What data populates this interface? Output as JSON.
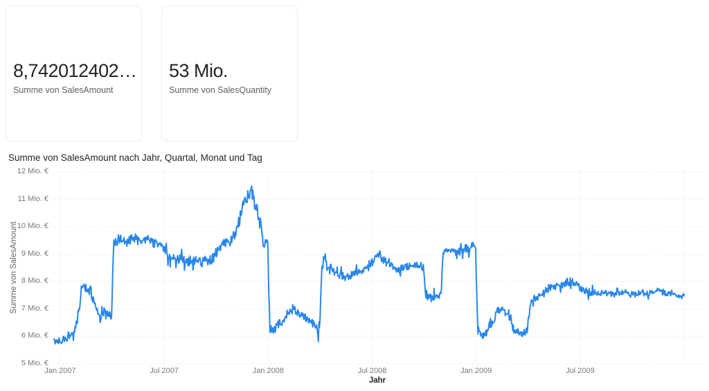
{
  "cards": [
    {
      "value": "8,742012402…",
      "label": "Summe von SalesAmount"
    },
    {
      "value": "53 Mio.",
      "label": "Summe von SalesQuantity"
    }
  ],
  "chart": {
    "title": "Summe von SalesAmount nach Jahr, Quartal, Monat und Tag",
    "y_axis_title": "Summe von SalesAmount",
    "x_axis_title": "Jahr"
  },
  "colors": {
    "line": "#2887EB",
    "grid": "#e0e0e0",
    "axis_text": "#777777",
    "title_text": "#252423",
    "card_value": "#252423",
    "card_label": "#605e5c",
    "card_border": "#ececec"
  },
  "chart_data": {
    "type": "line",
    "title": "Summe von SalesAmount nach Jahr, Quartal, Monat und Tag",
    "xlabel": "Jahr",
    "ylabel": "Summe von SalesAmount",
    "unit": "Mio. €",
    "granularity": "Tag",
    "series_name": "Summe von SalesAmount",
    "ylim": [
      5,
      12
    ],
    "y_ticks": [
      {
        "v": 12,
        "label": "12 Mio. €"
      },
      {
        "v": 11,
        "label": "11 Mio. €"
      },
      {
        "v": 10,
        "label": "10 Mio. €"
      },
      {
        "v": 9,
        "label": "9 Mio. €"
      },
      {
        "v": 8,
        "label": "8 Mio. €"
      },
      {
        "v": 7,
        "label": "7 Mio. €"
      },
      {
        "v": 6,
        "label": "6 Mio. €"
      },
      {
        "v": 5,
        "label": "5 Mio. €"
      }
    ],
    "x_ticks": [
      {
        "month": 0,
        "label": "Jan 2007"
      },
      {
        "month": 6,
        "label": "Jul 2007"
      },
      {
        "month": 12,
        "label": "Jan 2008"
      },
      {
        "month": 18,
        "label": "Jul 2008"
      },
      {
        "month": 24,
        "label": "Jan 2009"
      },
      {
        "month": 30,
        "label": "Jul 2009"
      },
      {
        "month": 36,
        "label": ""
      }
    ],
    "grid": "dotted",
    "legend": "none",
    "start_month_offset": -0.36,
    "days_per_month": 30.42,
    "noise_seed": 20070101,
    "spike_probability": 0.08,
    "spike_scale": 2.2,
    "value_clamp": [
      5.3,
      11.7
    ],
    "waypoints_month_value": [
      [
        0.0,
        5.85
      ],
      [
        0.4,
        5.95
      ],
      [
        0.8,
        6.15
      ],
      [
        1.0,
        6.6
      ],
      [
        1.15,
        7.3
      ],
      [
        1.3,
        8.0
      ],
      [
        1.5,
        7.65
      ],
      [
        1.75,
        7.7
      ],
      [
        2.0,
        7.05
      ],
      [
        2.3,
        6.7
      ],
      [
        2.6,
        6.9
      ],
      [
        2.95,
        6.65
      ],
      [
        3.08,
        9.35
      ],
      [
        3.4,
        9.55
      ],
      [
        3.8,
        9.45
      ],
      [
        4.2,
        9.6
      ],
      [
        4.6,
        9.5
      ],
      [
        5.0,
        9.55
      ],
      [
        5.4,
        9.45
      ],
      [
        5.8,
        9.35
      ],
      [
        6.15,
        9.0
      ],
      [
        6.5,
        8.85
      ],
      [
        7.0,
        8.8
      ],
      [
        7.5,
        8.7
      ],
      [
        8.0,
        8.75
      ],
      [
        8.5,
        8.65
      ],
      [
        8.9,
        8.9
      ],
      [
        9.2,
        9.3
      ],
      [
        9.6,
        9.45
      ],
      [
        10.0,
        9.6
      ],
      [
        10.3,
        10.1
      ],
      [
        10.6,
        10.9
      ],
      [
        10.85,
        11.15
      ],
      [
        11.05,
        11.4
      ],
      [
        11.2,
        10.85
      ],
      [
        11.4,
        10.55
      ],
      [
        11.55,
        10.1
      ],
      [
        11.7,
        9.45
      ],
      [
        11.97,
        9.4
      ],
      [
        12.1,
        6.25
      ],
      [
        12.4,
        6.3
      ],
      [
        12.8,
        6.55
      ],
      [
        13.1,
        6.85
      ],
      [
        13.4,
        7.0
      ],
      [
        13.7,
        6.9
      ],
      [
        14.0,
        6.75
      ],
      [
        14.4,
        6.55
      ],
      [
        14.75,
        6.3
      ],
      [
        14.97,
        6.15
      ],
      [
        15.08,
        8.55
      ],
      [
        15.25,
        8.85
      ],
      [
        15.5,
        8.5
      ],
      [
        15.8,
        8.35
      ],
      [
        16.2,
        8.25
      ],
      [
        16.6,
        8.2
      ],
      [
        17.0,
        8.3
      ],
      [
        17.4,
        8.35
      ],
      [
        17.8,
        8.6
      ],
      [
        18.2,
        8.9
      ],
      [
        18.45,
        9.0
      ],
      [
        18.8,
        8.7
      ],
      [
        19.2,
        8.5
      ],
      [
        19.6,
        8.45
      ],
      [
        20.0,
        8.55
      ],
      [
        20.4,
        8.6
      ],
      [
        20.97,
        8.55
      ],
      [
        21.1,
        7.5
      ],
      [
        21.4,
        7.4
      ],
      [
        21.7,
        7.5
      ],
      [
        21.97,
        7.55
      ],
      [
        22.1,
        9.1
      ],
      [
        22.5,
        9.15
      ],
      [
        22.9,
        9.1
      ],
      [
        23.3,
        9.2
      ],
      [
        23.6,
        9.15
      ],
      [
        23.85,
        9.45
      ],
      [
        23.97,
        9.2
      ],
      [
        24.1,
        6.15
      ],
      [
        24.4,
        6.05
      ],
      [
        24.7,
        6.25
      ],
      [
        24.97,
        6.5
      ],
      [
        25.15,
        6.9
      ],
      [
        25.5,
        6.95
      ],
      [
        25.85,
        6.8
      ],
      [
        26.15,
        6.25
      ],
      [
        26.5,
        6.1
      ],
      [
        26.95,
        6.2
      ],
      [
        27.15,
        7.3
      ],
      [
        27.5,
        7.45
      ],
      [
        27.9,
        7.6
      ],
      [
        28.3,
        7.8
      ],
      [
        28.7,
        7.85
      ],
      [
        29.0,
        7.9
      ],
      [
        29.3,
        8.0
      ],
      [
        29.6,
        7.95
      ],
      [
        29.9,
        7.85
      ],
      [
        30.2,
        7.7
      ],
      [
        30.6,
        7.6
      ],
      [
        31.0,
        7.55
      ],
      [
        31.5,
        7.6
      ],
      [
        32.0,
        7.55
      ],
      [
        32.5,
        7.6
      ],
      [
        33.0,
        7.55
      ],
      [
        33.5,
        7.6
      ],
      [
        34.0,
        7.55
      ],
      [
        34.4,
        7.65
      ],
      [
        34.7,
        7.7
      ],
      [
        35.0,
        7.55
      ],
      [
        35.4,
        7.6
      ],
      [
        35.8,
        7.45
      ],
      [
        36.0,
        7.5
      ]
    ],
    "noise_amp_per_month": [
      0.12,
      0.22,
      0.18,
      0.15,
      0.13,
      0.15,
      0.16,
      0.18,
      0.2,
      0.18,
      0.22,
      0.28,
      0.15,
      0.15,
      0.18,
      0.2,
      0.13,
      0.13,
      0.18,
      0.13,
      0.12,
      0.13,
      0.12,
      0.13,
      0.2,
      0.13,
      0.15,
      0.1,
      0.12,
      0.16,
      0.13,
      0.1,
      0.1,
      0.1,
      0.12,
      0.08
    ]
  }
}
